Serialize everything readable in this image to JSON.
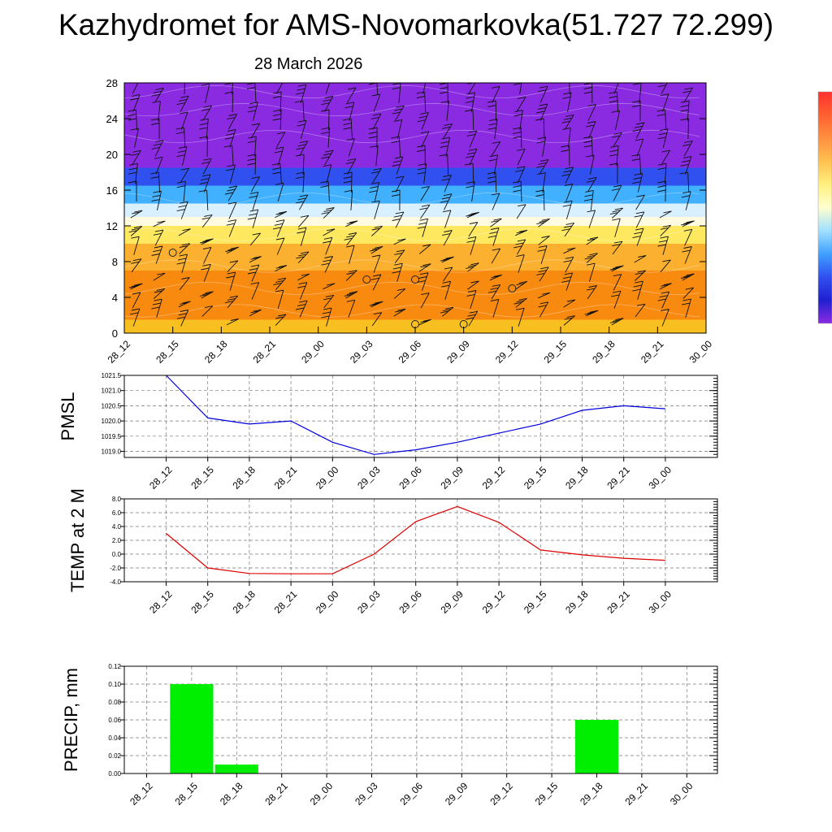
{
  "header": {
    "title": "Kazhydromet for AMS-Novomarkovka(51.727 72.299)",
    "date": "28 March 2026"
  },
  "chart_data": [
    {
      "id": "cross-section",
      "type": "heatmap",
      "title": "",
      "x_tick_labels": [
        "28_12",
        "28_15",
        "28_18",
        "28_21",
        "29_00",
        "29_03",
        "29_06",
        "29_09",
        "29_12",
        "29_15",
        "29_18",
        "29_21",
        "30_00"
      ],
      "y_tick_labels": [
        "0",
        "4",
        "8",
        "12",
        "16",
        "20",
        "24",
        "28"
      ],
      "ylim": [
        0,
        28
      ],
      "color_bands": [
        {
          "from": 0,
          "to": 1.5,
          "color": "#f7c020"
        },
        {
          "from": 1.5,
          "to": 7,
          "color": "#f88a10"
        },
        {
          "from": 7,
          "to": 10,
          "color": "#fbb030"
        },
        {
          "from": 10,
          "to": 12,
          "color": "#fde860"
        },
        {
          "from": 12,
          "to": 13,
          "color": "#fffbe0"
        },
        {
          "from": 13,
          "to": 14.5,
          "color": "#d8f0ff"
        },
        {
          "from": 14.5,
          "to": 16.5,
          "color": "#40b0ff"
        },
        {
          "from": 16.5,
          "to": 18.5,
          "color": "#3050f0"
        },
        {
          "from": 18.5,
          "to": 28,
          "color": "#8a2be2"
        }
      ],
      "calm_markers": [
        {
          "time": "28_15",
          "height": 9
        },
        {
          "time": "29_03",
          "height": 6
        },
        {
          "time": "29_06",
          "height": 6
        },
        {
          "time": "29_06",
          "height": 1
        },
        {
          "time": "29_09",
          "height": 1
        },
        {
          "time": "29_12",
          "height": 5
        }
      ],
      "colorbar": [
        "#ff3030",
        "#ff6030",
        "#ff9040",
        "#ffc050",
        "#fff080",
        "#ffffd0",
        "#a0e0ff",
        "#40a0ff",
        "#3050f0",
        "#2020d0",
        "#8a2be2"
      ]
    },
    {
      "id": "pmsl",
      "type": "line",
      "ylabel": "PMSL",
      "categories": [
        "28_12",
        "28_15",
        "28_18",
        "28_21",
        "29_00",
        "29_03",
        "29_06",
        "29_09",
        "29_12",
        "29_15",
        "29_18",
        "29_21",
        "30_00"
      ],
      "series": [
        {
          "values": [
            1021.5,
            1020.1,
            1019.9,
            1020.0,
            1019.3,
            1018.9,
            1019.05,
            1019.3,
            1019.6,
            1019.9,
            1020.35,
            1020.5,
            1020.4
          ],
          "color": "#0000dd"
        }
      ],
      "ylim": [
        1018.8,
        1021.5
      ],
      "y_ticks": [
        "1019.0",
        "1019.5",
        "1020.0",
        "1020.5",
        "1021.0",
        "1021.5"
      ],
      "grid": true
    },
    {
      "id": "temp",
      "type": "line",
      "ylabel": "TEMP at 2 M",
      "categories": [
        "28_12",
        "28_15",
        "28_18",
        "28_21",
        "29_00",
        "29_03",
        "29_06",
        "29_09",
        "29_12",
        "29_15",
        "29_18",
        "29_21",
        "30_00"
      ],
      "series": [
        {
          "values": [
            3.0,
            -2.0,
            -2.8,
            -2.85,
            -2.85,
            0.0,
            4.7,
            6.9,
            4.6,
            0.6,
            -0.1,
            -0.6,
            -0.9
          ],
          "color": "#dd0000"
        }
      ],
      "ylim": [
        -4,
        8
      ],
      "y_ticks": [
        "-4.0",
        "-2.0",
        "0.0",
        "2.0",
        "4.0",
        "6.0",
        "8.0"
      ],
      "grid": true
    },
    {
      "id": "precip",
      "type": "bar",
      "ylabel": "PRECIP, mm",
      "categories": [
        "28_12",
        "28_15",
        "28_18",
        "28_21",
        "29_00",
        "29_03",
        "29_06",
        "29_09",
        "29_12",
        "29_15",
        "29_18",
        "29_21",
        "30_00"
      ],
      "values": [
        0,
        0.1,
        0.01,
        0,
        0,
        0,
        0,
        0,
        0,
        0,
        0.06,
        0,
        0
      ],
      "color": "#00ee00",
      "ylim": [
        0,
        0.12
      ],
      "y_ticks": [
        "0.00",
        "0.02",
        "0.04",
        "0.06",
        "0.08",
        "0.10",
        "0.12"
      ],
      "grid": true
    }
  ]
}
